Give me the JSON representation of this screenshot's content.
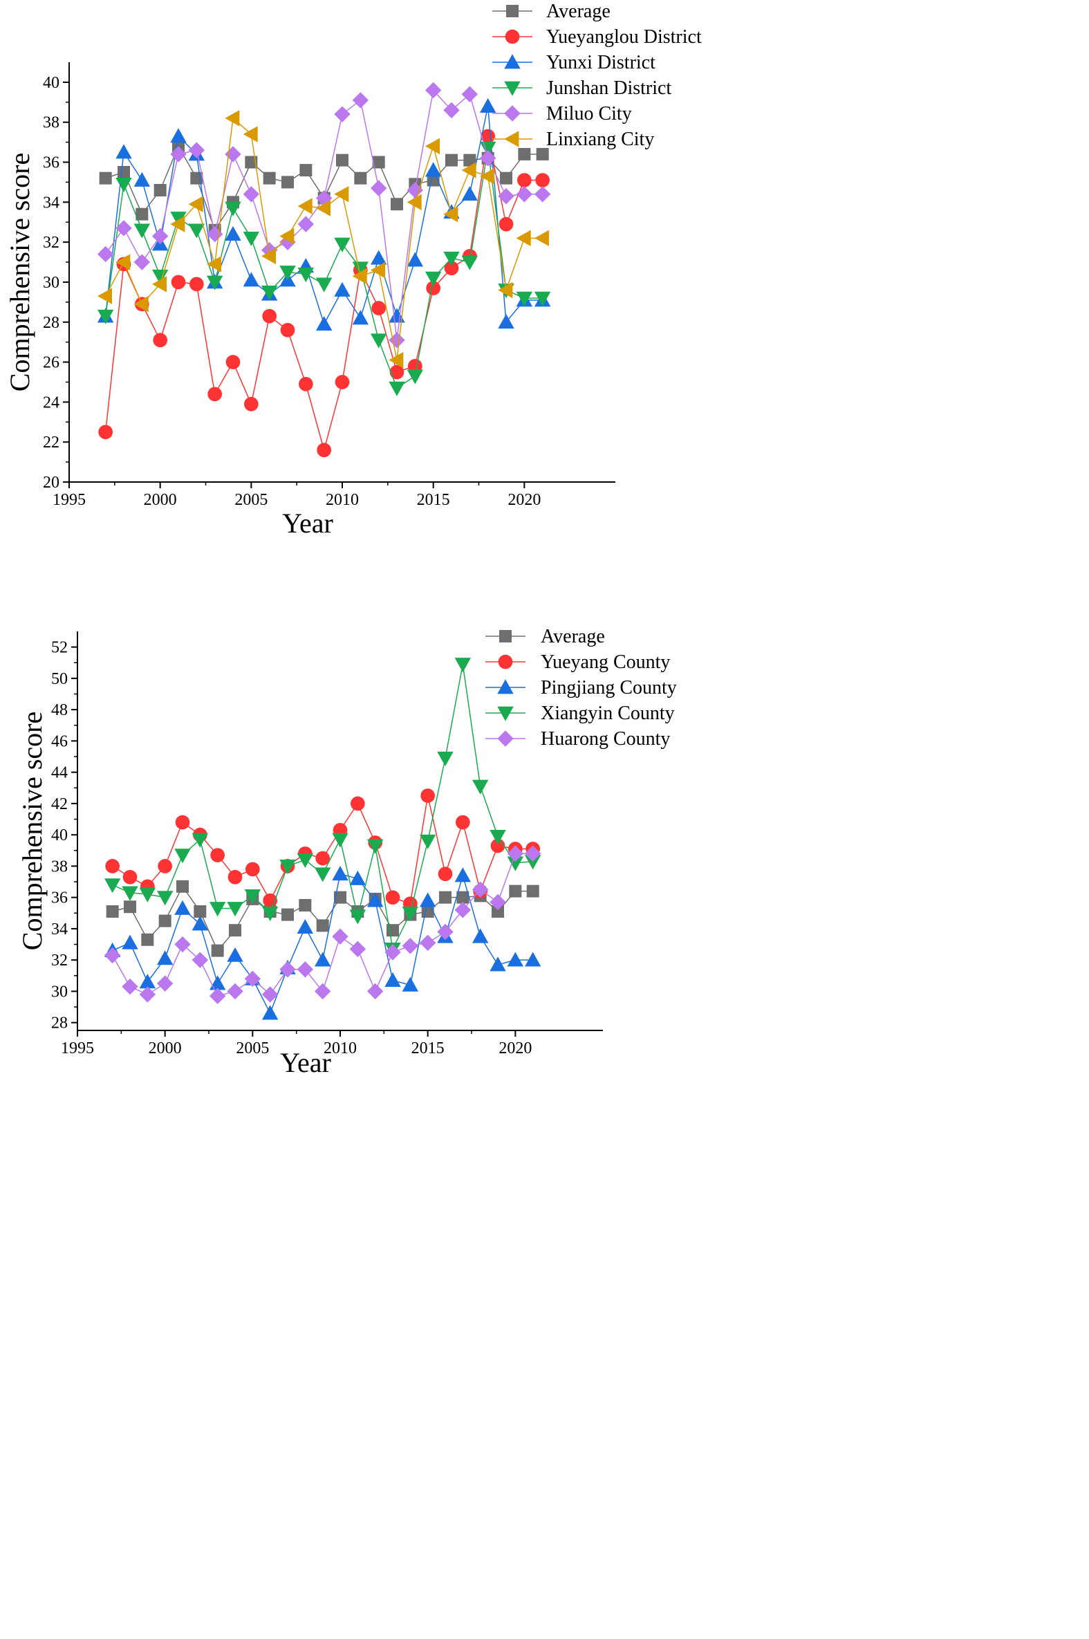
{
  "chart_data": [
    {
      "type": "line",
      "xlabel": "Year",
      "ylabel": "Comprehensive score",
      "xlim": [
        1995,
        2025
      ],
      "ylim": [
        20,
        41
      ],
      "xticks": [
        1995,
        2000,
        2005,
        2010,
        2015,
        2020
      ],
      "yticks": [
        20,
        22,
        24,
        26,
        28,
        30,
        32,
        34,
        36,
        38,
        40
      ],
      "legend_position": "top-right",
      "x": [
        1997,
        1998,
        1999,
        2000,
        2001,
        2002,
        2003,
        2004,
        2005,
        2006,
        2007,
        2008,
        2009,
        2010,
        2011,
        2012,
        2013,
        2014,
        2015,
        2016,
        2017,
        2018,
        2019,
        2020,
        2021
      ],
      "series": [
        {
          "name": "Average",
          "color": "#6e6e6e",
          "marker": "square",
          "values": [
            35.2,
            35.5,
            33.4,
            34.6,
            36.8,
            35.2,
            32.6,
            34.0,
            36.0,
            35.2,
            35.0,
            35.6,
            34.2,
            36.1,
            35.2,
            36.0,
            33.9,
            34.9,
            35.1,
            36.1,
            36.1,
            36.2,
            35.2,
            36.4,
            36.4
          ]
        },
        {
          "name": "Yueyanglou District",
          "color": "#ff3333",
          "marker": "circle",
          "values": [
            22.5,
            30.9,
            28.9,
            27.1,
            30.0,
            29.9,
            24.4,
            26.0,
            23.9,
            28.3,
            27.6,
            24.9,
            21.6,
            25.0,
            30.6,
            28.7,
            25.5,
            25.8,
            29.7,
            30.7,
            31.3,
            37.3,
            32.9,
            35.1,
            35.1
          ]
        },
        {
          "name": "Yunxi District",
          "color": "#1a6fe0",
          "marker": "triangle-up",
          "values": [
            28.3,
            36.5,
            35.1,
            31.9,
            37.3,
            36.4,
            30.0,
            32.4,
            30.1,
            29.4,
            30.1,
            30.8,
            27.9,
            29.6,
            28.2,
            31.2,
            28.3,
            31.1,
            35.6,
            33.5,
            34.4,
            38.8,
            28.0,
            29.1,
            29.1
          ]
        },
        {
          "name": "Junshan District",
          "color": "#1aaa50",
          "marker": "triangle-down",
          "values": [
            28.3,
            34.9,
            32.6,
            30.3,
            33.2,
            32.6,
            30.0,
            33.7,
            32.2,
            29.5,
            30.5,
            30.4,
            29.9,
            31.9,
            30.7,
            27.1,
            24.7,
            25.3,
            30.2,
            31.2,
            31.0,
            36.7,
            29.6,
            29.2,
            29.2
          ]
        },
        {
          "name": "Miluo City",
          "color": "#bb77ee",
          "marker": "diamond",
          "values": [
            31.4,
            32.7,
            31.0,
            32.3,
            36.4,
            36.6,
            32.4,
            36.4,
            34.4,
            31.6,
            32.0,
            32.9,
            34.2,
            38.4,
            39.1,
            34.7,
            27.1,
            34.6,
            39.6,
            38.6,
            39.4,
            36.2,
            34.3,
            34.4,
            34.4
          ]
        },
        {
          "name": "Linxiang City",
          "color": "#d99a00",
          "marker": "triangle-left",
          "values": [
            29.3,
            31.0,
            28.9,
            29.9,
            32.9,
            33.9,
            30.9,
            38.2,
            37.4,
            31.3,
            32.3,
            33.8,
            33.7,
            34.4,
            30.3,
            30.6,
            26.1,
            34.0,
            36.8,
            33.4,
            35.6,
            35.3,
            29.6,
            32.2,
            32.2
          ]
        }
      ]
    },
    {
      "type": "line",
      "xlabel": "Year",
      "ylabel": "Comprehensive score",
      "xlim": [
        1995,
        2025
      ],
      "ylim": [
        27.5,
        53
      ],
      "xticks": [
        1995,
        2000,
        2005,
        2010,
        2015,
        2020
      ],
      "yticks": [
        28,
        30,
        32,
        34,
        36,
        38,
        40,
        42,
        44,
        46,
        48,
        50,
        52
      ],
      "legend_position": "top-right",
      "x": [
        1997,
        1998,
        1999,
        2000,
        2001,
        2002,
        2003,
        2004,
        2005,
        2006,
        2007,
        2008,
        2009,
        2010,
        2011,
        2012,
        2013,
        2014,
        2015,
        2016,
        2017,
        2018,
        2019,
        2020,
        2021
      ],
      "series": [
        {
          "name": "Average",
          "color": "#6e6e6e",
          "marker": "square",
          "values": [
            35.1,
            35.4,
            33.3,
            34.5,
            36.7,
            35.1,
            32.6,
            33.9,
            35.9,
            35.1,
            34.9,
            35.5,
            34.2,
            36.0,
            35.1,
            35.9,
            33.9,
            34.9,
            35.1,
            36.0,
            36.0,
            36.1,
            35.1,
            36.4,
            36.4
          ]
        },
        {
          "name": "Yueyang County",
          "color": "#ff3333",
          "marker": "circle",
          "values": [
            38.0,
            37.3,
            36.7,
            38.0,
            40.8,
            40.0,
            38.7,
            37.3,
            37.8,
            35.8,
            38.0,
            38.8,
            38.5,
            40.3,
            42.0,
            39.5,
            36.0,
            35.6,
            42.5,
            37.5,
            40.8,
            36.4,
            39.3,
            39.1,
            39.1
          ]
        },
        {
          "name": "Pingjiang County",
          "color": "#1a6fe0",
          "marker": "triangle-up",
          "values": [
            32.6,
            33.1,
            30.6,
            32.1,
            35.3,
            34.3,
            30.5,
            32.3,
            30.8,
            28.6,
            31.5,
            34.1,
            32.0,
            37.5,
            37.2,
            35.8,
            30.7,
            30.4,
            35.8,
            33.5,
            37.4,
            33.5,
            31.7,
            32.0,
            32.0
          ]
        },
        {
          "name": "Xiangyin County",
          "color": "#1aaa50",
          "marker": "triangle-down",
          "values": [
            36.8,
            36.3,
            36.2,
            36.0,
            38.7,
            39.7,
            35.3,
            35.3,
            36.1,
            35.0,
            38.0,
            38.4,
            37.5,
            39.7,
            34.8,
            39.3,
            32.7,
            35.0,
            39.6,
            44.9,
            50.9,
            43.1,
            39.9,
            38.2,
            38.3
          ]
        },
        {
          "name": "Huarong County",
          "color": "#bb77ee",
          "marker": "diamond",
          "values": [
            32.3,
            30.3,
            29.8,
            30.5,
            33.0,
            32.0,
            29.7,
            30.0,
            30.8,
            29.8,
            31.4,
            31.4,
            30.0,
            33.5,
            32.7,
            30.0,
            32.5,
            32.9,
            33.1,
            33.8,
            35.2,
            36.5,
            35.7,
            38.8,
            38.8
          ]
        }
      ]
    }
  ]
}
